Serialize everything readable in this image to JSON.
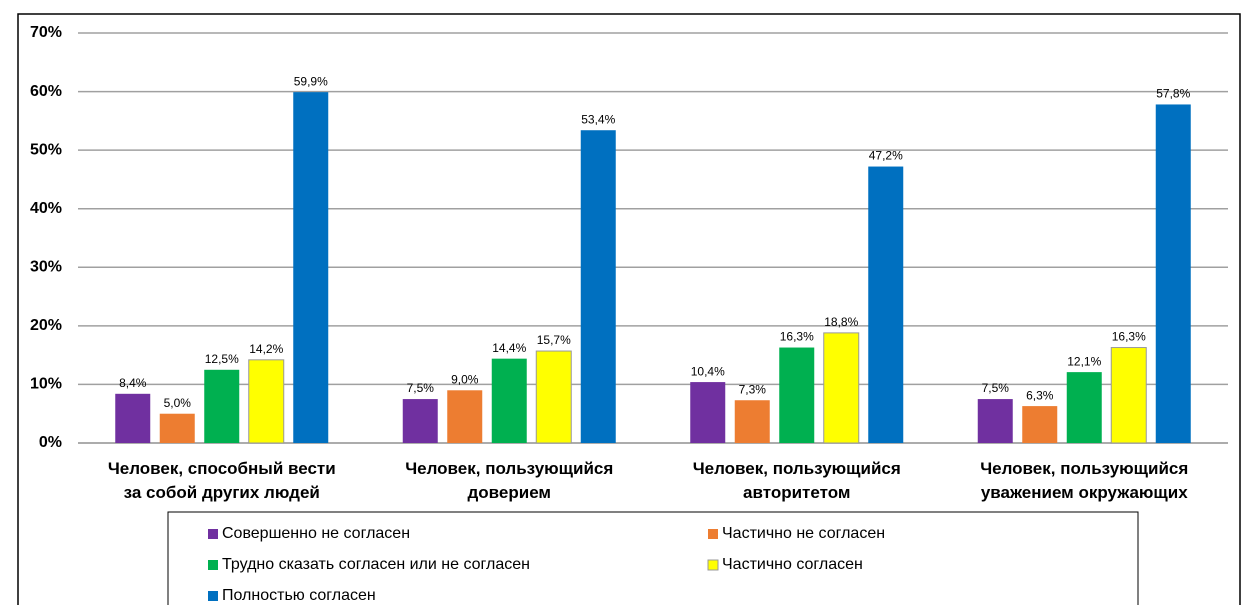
{
  "chart_data": {
    "type": "bar",
    "categories": [
      "Человек, способный вести\nза собой других людей",
      "Человек, пользующийся\nдоверием",
      "Человек, пользующийся\nавторитетом",
      "Человек, пользующийся\nуважением окружающих"
    ],
    "series": [
      {
        "name": "Совершенно не согласен",
        "color": "#7030a0",
        "values": [
          8.4,
          7.5,
          10.4,
          7.5
        ],
        "value_labels": [
          "8,4%",
          "7,5%",
          "10,4%",
          "7,5%"
        ]
      },
      {
        "name": "Частично не согласен",
        "color": "#ed7d31",
        "values": [
          5.0,
          9.0,
          7.3,
          6.3
        ],
        "value_labels": [
          "5,0%",
          "9,0%",
          "7,3%",
          "6,3%"
        ]
      },
      {
        "name": "Трудно сказать согласен или не согласен",
        "color": "#00b050",
        "values": [
          12.5,
          14.4,
          16.3,
          12.1
        ],
        "value_labels": [
          "12,5%",
          "14,4%",
          "16,3%",
          "12,1%"
        ]
      },
      {
        "name": "Частично согласен",
        "color": "#ffff00",
        "values": [
          14.2,
          15.7,
          18.8,
          16.3
        ],
        "value_labels": [
          "14,2%",
          "15,7%",
          "18,8%",
          "16,3%"
        ]
      },
      {
        "name": "Полностью согласен",
        "color": "#0070c0",
        "values": [
          59.9,
          53.4,
          47.2,
          57.8
        ],
        "value_labels": [
          "59,9%",
          "53,4%",
          "47,2%",
          "57,8%"
        ]
      }
    ],
    "ylim": [
      0,
      70
    ],
    "yticks": [
      {
        "value": 0,
        "label": "0%"
      },
      {
        "value": 10,
        "label": "10%"
      },
      {
        "value": 20,
        "label": "20%"
      },
      {
        "value": 30,
        "label": "30%"
      },
      {
        "value": 40,
        "label": "40%"
      },
      {
        "value": 50,
        "label": "50%"
      },
      {
        "value": 60,
        "label": "60%"
      },
      {
        "value": 70,
        "label": "70%"
      }
    ],
    "grid": true,
    "legend": "bottom"
  }
}
